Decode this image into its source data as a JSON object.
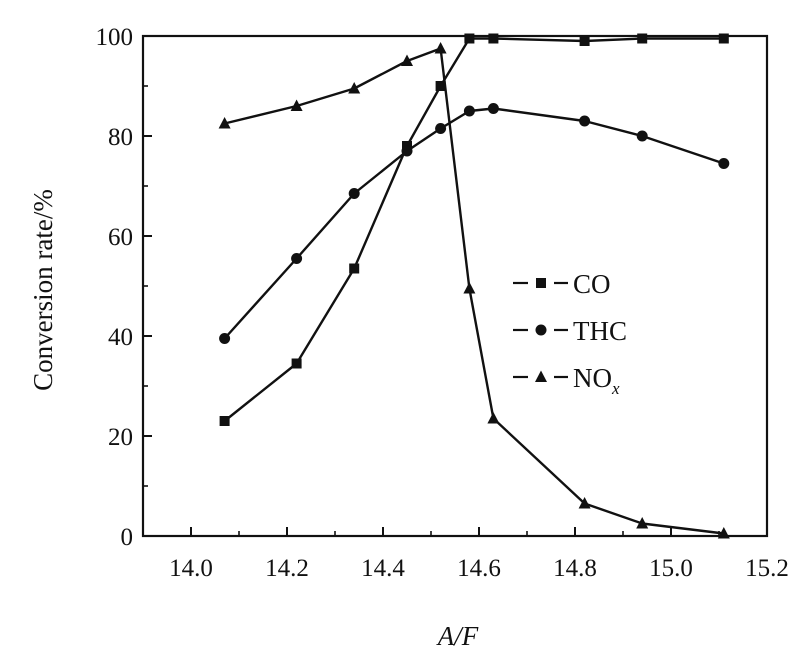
{
  "chart_data": {
    "type": "line",
    "xlabel": "A/F",
    "ylabel": "Conversion rate/%",
    "xlim": [
      13.9,
      15.2
    ],
    "ylim": [
      0,
      100
    ],
    "xticks": [
      "14.0",
      "14.2",
      "14.4",
      "14.6",
      "14.8",
      "15.0",
      "15.2"
    ],
    "yticks": [
      "0",
      "20",
      "40",
      "60",
      "80",
      "100"
    ],
    "grid": false,
    "legend_position": "center-right",
    "series": [
      {
        "name": "CO",
        "marker": "square",
        "points": [
          [
            14.07,
            23
          ],
          [
            14.22,
            34.5
          ],
          [
            14.34,
            53.5
          ],
          [
            14.45,
            78
          ],
          [
            14.52,
            90
          ],
          [
            14.58,
            99.5
          ],
          [
            14.63,
            99.5
          ],
          [
            14.82,
            99
          ],
          [
            14.94,
            99.5
          ],
          [
            15.11,
            99.5
          ]
        ]
      },
      {
        "name": "THC",
        "marker": "circle",
        "points": [
          [
            14.07,
            39.5
          ],
          [
            14.22,
            55.5
          ],
          [
            14.34,
            68.5
          ],
          [
            14.45,
            77
          ],
          [
            14.52,
            81.5
          ],
          [
            14.58,
            85
          ],
          [
            14.63,
            85.5
          ],
          [
            14.82,
            83
          ],
          [
            14.94,
            80
          ],
          [
            15.11,
            74.5
          ]
        ]
      },
      {
        "name": "NO",
        "name_subscript": "x",
        "marker": "triangle",
        "points": [
          [
            14.07,
            82.5
          ],
          [
            14.22,
            86
          ],
          [
            14.34,
            89.5
          ],
          [
            14.45,
            95
          ],
          [
            14.52,
            97.5
          ],
          [
            14.58,
            49.5
          ],
          [
            14.63,
            23.5
          ],
          [
            14.82,
            6.5
          ],
          [
            14.94,
            2.5
          ],
          [
            15.11,
            0.5
          ]
        ]
      }
    ]
  }
}
